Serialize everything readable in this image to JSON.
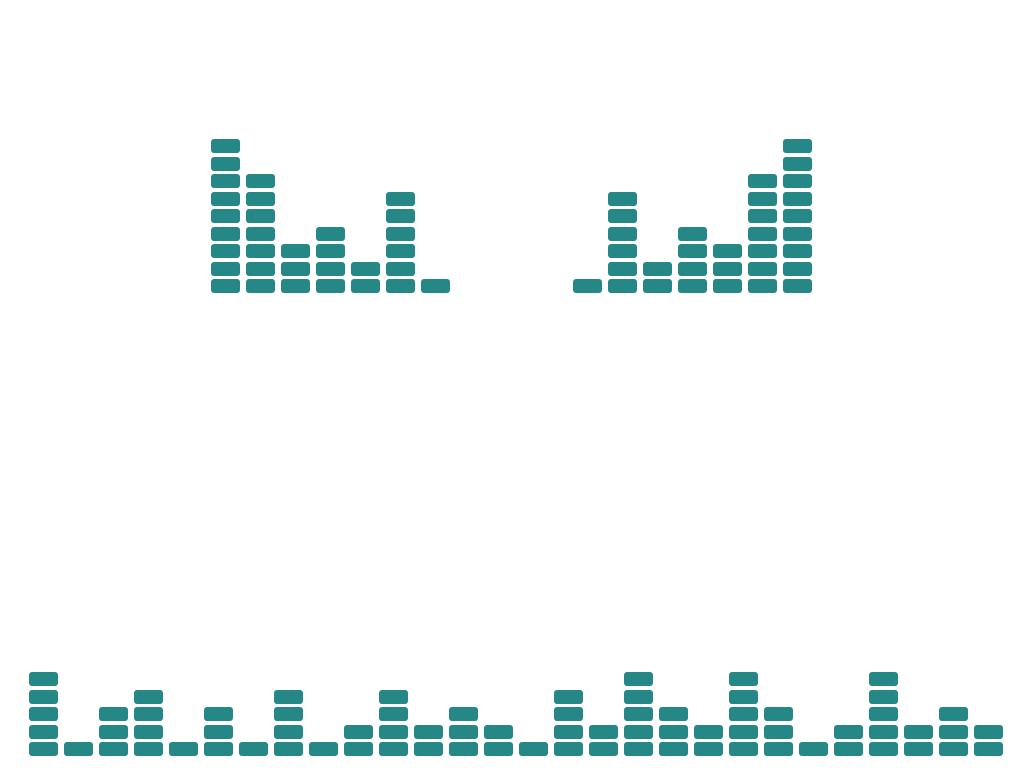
{
  "visualizer": {
    "segment_color": "#268886",
    "background_color": "#ffffff",
    "top_left_meter": {
      "levels": [
        9,
        7,
        3,
        4,
        2,
        6,
        1
      ]
    },
    "top_right_meter": {
      "levels": [
        1,
        6,
        2,
        4,
        3,
        7,
        9
      ]
    },
    "bottom_meter": {
      "levels": [
        5,
        1,
        3,
        4,
        1,
        3,
        1,
        4,
        1,
        2,
        4,
        2,
        3,
        2,
        1,
        4,
        2,
        5,
        3,
        2,
        5,
        3,
        1,
        2,
        5,
        2,
        3,
        2
      ]
    }
  }
}
